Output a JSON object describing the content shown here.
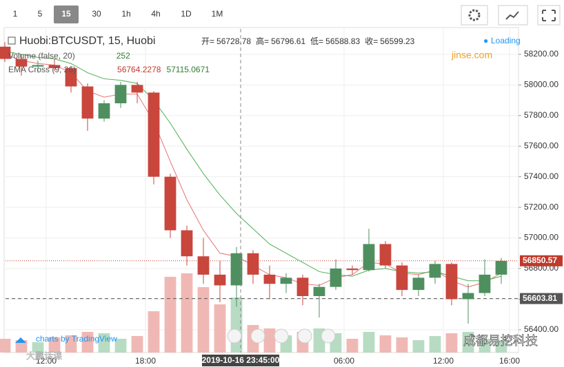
{
  "toolbar": {
    "intervals": [
      "1",
      "5",
      "15",
      "30",
      "1h",
      "4h",
      "1D",
      "1M"
    ],
    "active": 2
  },
  "chart_data": {
    "type": "candlestick",
    "symbol": "Huobi:BTCUSDT, 15, Huobi",
    "ohlc_labels": [
      {
        "label": "开=",
        "value": "56728.78"
      },
      {
        "label": "高=",
        "value": "56796.61"
      },
      {
        "label": "低=",
        "value": "56588.83"
      },
      {
        "label": "收=",
        "value": "56599.23"
      }
    ],
    "studies": [
      {
        "name": "Volume (false, 20)",
        "values": [
          "252"
        ]
      },
      {
        "name": "EMA Cross (9, 26)",
        "values": [
          "56764.2278",
          "57115.0671"
        ]
      }
    ],
    "status": "Loading",
    "watermark": "jinse.com",
    "credit": "charts by TradingView",
    "footer_brand": "成都易挖科技",
    "footer_left": "大鹏话课",
    "x": [
      -2.5,
      -1.5,
      -0.5,
      0.5,
      1.5,
      2.5,
      3.5,
      4.5,
      5.5,
      6.5,
      7.5,
      8.5,
      9.5,
      10.5,
      11.5,
      12.5,
      13.5,
      14.5,
      15.5,
      16.5,
      17.5,
      18.5,
      19.5,
      20.5,
      21.5,
      22.5,
      23.5,
      24.5,
      25.5,
      26.5,
      27.5
    ],
    "open": [
      58250,
      58170,
      58120,
      58130,
      58110,
      57990,
      57780,
      57880,
      58000,
      57950,
      57400,
      57050,
      56880,
      56760,
      56690,
      56900,
      56760,
      56700,
      56740,
      56620,
      56680,
      56800,
      56790,
      56960,
      56820,
      56660,
      56740,
      56830,
      56600,
      56640,
      56760
    ],
    "high": [
      58280,
      58200,
      58160,
      58170,
      58120,
      58010,
      57900,
      58020,
      58020,
      57960,
      57420,
      57080,
      57000,
      56850,
      56940,
      56920,
      56820,
      56770,
      56760,
      56700,
      56860,
      56820,
      57060,
      56980,
      56840,
      56760,
      56850,
      56840,
      56700,
      56860,
      56870
    ],
    "low": [
      58150,
      58060,
      58080,
      58090,
      57950,
      57700,
      57760,
      57850,
      57880,
      57350,
      57000,
      56820,
      56700,
      56580,
      56550,
      56700,
      56600,
      56640,
      56560,
      56480,
      56660,
      56760,
      56780,
      56800,
      56620,
      56620,
      56700,
      56560,
      56440,
      56620,
      56700
    ],
    "close": [
      58170,
      58120,
      58130,
      58110,
      57990,
      57780,
      57880,
      58000,
      57950,
      57400,
      57050,
      56880,
      56760,
      56690,
      56900,
      56760,
      56700,
      56740,
      56620,
      56680,
      56800,
      56790,
      56960,
      56820,
      56660,
      56740,
      56830,
      56600,
      56640,
      56760,
      56850
    ],
    "volume": [
      20,
      18,
      15,
      22,
      25,
      30,
      28,
      20,
      24,
      60,
      110,
      115,
      95,
      70,
      80,
      40,
      35,
      25,
      30,
      35,
      28,
      20,
      30,
      25,
      22,
      18,
      24,
      28,
      30,
      20,
      18
    ],
    "vlim": [
      0,
      470
    ],
    "ema": [
      {
        "name": "fast",
        "color": "#e57373",
        "values": [
          58200,
          58160,
          58140,
          58130,
          58080,
          57960,
          57920,
          57940,
          57940,
          57760,
          57500,
          57250,
          57050,
          56900,
          56880,
          56820,
          56760,
          56740,
          56700,
          56690,
          56740,
          56760,
          56840,
          56830,
          56770,
          56760,
          56790,
          56720,
          56680,
          56710,
          56770
        ]
      },
      {
        "name": "slow",
        "color": "#4caf50",
        "values": [
          58220,
          58200,
          58180,
          58170,
          58140,
          58080,
          58040,
          58030,
          58010,
          57900,
          57750,
          57580,
          57420,
          57280,
          57160,
          57060,
          56960,
          56900,
          56840,
          56780,
          56760,
          56750,
          56790,
          56800,
          56780,
          56770,
          56780,
          56750,
          56720,
          56720,
          56750
        ]
      }
    ],
    "up_color": "#4f8f5f",
    "down_color": "#c9463d",
    "xlim": [
      -2.458,
      28.542
    ],
    "xticks": [
      {
        "value": 0,
        "label": "12:00"
      },
      {
        "value": 6,
        "label": "18:00"
      },
      {
        "value": 18,
        "label": "06:00"
      },
      {
        "value": 24,
        "label": "12:00"
      },
      {
        "value": 28,
        "label": "16:00"
      }
    ],
    "crosshair": {
      "value": 11.75,
      "label": "2019-10-16 23:45:00"
    },
    "ylim": [
      56251,
      58366
    ],
    "yticks": [
      {
        "value": 56400,
        "label": "56400.00"
      },
      {
        "value": 56600,
        "label": "56600.00"
      },
      {
        "value": 56800,
        "label": "56800.00"
      },
      {
        "value": 57000,
        "label": "57000.00"
      },
      {
        "value": 57200,
        "label": "57200.00"
      },
      {
        "value": 57400,
        "label": "57400.00"
      },
      {
        "value": 57600,
        "label": "57600.00"
      },
      {
        "value": 57800,
        "label": "57800.00"
      },
      {
        "value": 58000,
        "label": "58000.00"
      },
      {
        "value": 58200,
        "label": "58200.00"
      }
    ],
    "price_lines": [
      {
        "value": 56850.57,
        "label": "56850.57",
        "color": "#c0392b"
      },
      {
        "value": 56603.81,
        "label": "56603.81",
        "color": "#555"
      }
    ],
    "grid": true
  }
}
